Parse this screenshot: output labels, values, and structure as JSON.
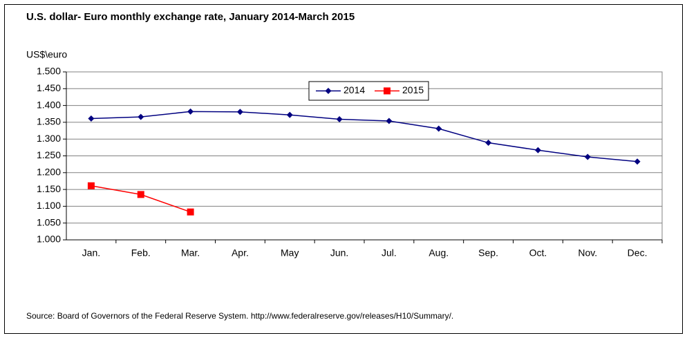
{
  "chart_data": {
    "type": "line",
    "title": "U.S. dollar- Euro monthly exchange rate, January 2014-March 2015",
    "y_label": "US$\\euro",
    "source": "Source: Board of Governors of the Federal Reserve System. http://www.federalreserve.gov/releases/H10/Summary/.",
    "categories": [
      "Jan.",
      "Feb.",
      "Mar.",
      "Apr.",
      "May",
      "Jun.",
      "Jul.",
      "Aug.",
      "Sep.",
      "Oct.",
      "Nov.",
      "Dec."
    ],
    "series": [
      {
        "name": "2014",
        "color": "#000080",
        "marker": "diamond",
        "values": [
          1.361,
          1.366,
          1.382,
          1.381,
          1.372,
          1.359,
          1.354,
          1.331,
          1.289,
          1.267,
          1.247,
          1.233
        ]
      },
      {
        "name": "2015",
        "color": "#ff0000",
        "marker": "square",
        "values": [
          1.161,
          1.135,
          1.083,
          null,
          null,
          null,
          null,
          null,
          null,
          null,
          null,
          null
        ]
      }
    ],
    "ylim": [
      1.0,
      1.5
    ],
    "yticks": [
      {
        "value": 1.0,
        "label": "1.000"
      },
      {
        "value": 1.05,
        "label": "1.050"
      },
      {
        "value": 1.1,
        "label": "1.100"
      },
      {
        "value": 1.15,
        "label": "1.150"
      },
      {
        "value": 1.2,
        "label": "1.200"
      },
      {
        "value": 1.25,
        "label": "1.250"
      },
      {
        "value": 1.3,
        "label": "1.300"
      },
      {
        "value": 1.35,
        "label": "1.350"
      },
      {
        "value": 1.4,
        "label": "1.400"
      },
      {
        "value": 1.45,
        "label": "1.450"
      },
      {
        "value": 1.5,
        "label": "1.500"
      }
    ],
    "grid": true,
    "legend": "top"
  }
}
